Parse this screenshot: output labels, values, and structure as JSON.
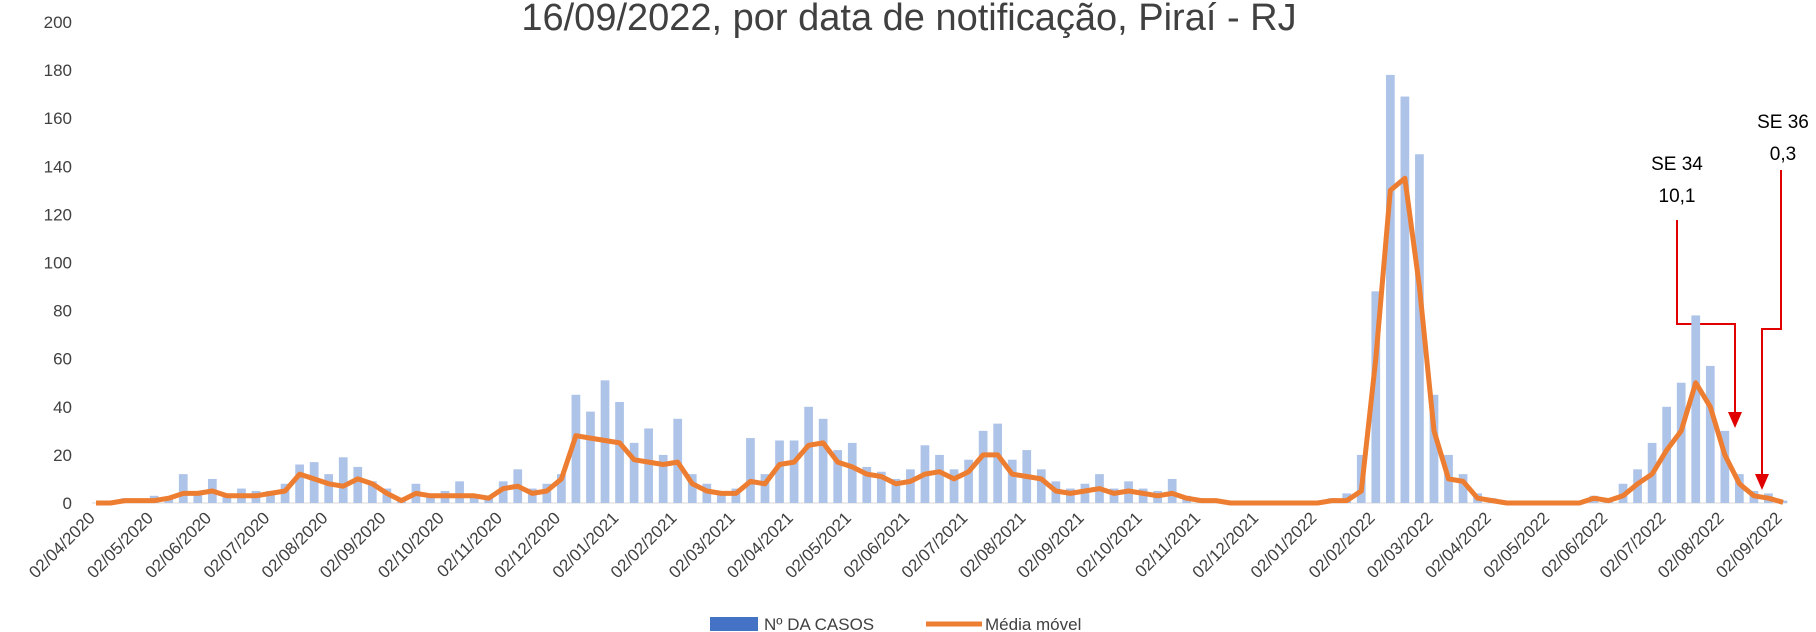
{
  "chart_data": {
    "type": "bar_line",
    "title": "16/09/2022, por data de notificação, Piraí - RJ",
    "categories": [
      "02/04/2020",
      null,
      null,
      null,
      "02/05/2020",
      null,
      null,
      null,
      "02/06/2020",
      null,
      null,
      null,
      "02/07/2020",
      null,
      null,
      null,
      "02/08/2020",
      null,
      null,
      null,
      "02/09/2020",
      null,
      null,
      null,
      "02/10/2020",
      null,
      null,
      null,
      "02/11/2020",
      null,
      null,
      null,
      "02/12/2020",
      null,
      null,
      null,
      "02/01/2021",
      null,
      null,
      null,
      "02/02/2021",
      null,
      null,
      null,
      "02/03/2021",
      null,
      null,
      null,
      "02/04/2021",
      null,
      null,
      null,
      "02/05/2021",
      null,
      null,
      null,
      "02/06/2021",
      null,
      null,
      null,
      "02/07/2021",
      null,
      null,
      null,
      "02/08/2021",
      null,
      null,
      null,
      "02/09/2021",
      null,
      null,
      null,
      "02/10/2021",
      null,
      null,
      null,
      "02/11/2021",
      null,
      null,
      null,
      "02/12/2021",
      null,
      null,
      null,
      "02/01/2022",
      null,
      null,
      null,
      "02/02/2022",
      null,
      null,
      null,
      "02/03/2022",
      null,
      null,
      null,
      "02/04/2022",
      null,
      null,
      null,
      "02/05/2022",
      null,
      null,
      null,
      "02/06/2022",
      null,
      null,
      null,
      "02/07/2022",
      null,
      null,
      null,
      "02/08/2022",
      null,
      null,
      null,
      "02/09/2022"
    ],
    "series": [
      {
        "name": "Nº DA CASOS",
        "color": "#aec3e8",
        "legend_color": "#4472c4",
        "kind": "bar",
        "values": [
          0,
          1,
          2,
          1,
          3,
          2,
          12,
          5,
          10,
          4,
          6,
          5,
          5,
          8,
          16,
          17,
          12,
          19,
          15,
          9,
          6,
          2,
          8,
          4,
          5,
          9,
          3,
          2,
          9,
          14,
          6,
          8,
          12,
          45,
          38,
          51,
          42,
          25,
          31,
          20,
          35,
          12,
          8,
          5,
          6,
          27,
          12,
          26,
          26,
          40,
          35,
          22,
          25,
          15,
          13,
          10,
          14,
          24,
          20,
          14,
          18,
          30,
          33,
          18,
          22,
          14,
          9,
          6,
          8,
          12,
          6,
          9,
          6,
          5,
          10,
          3,
          2,
          1,
          0,
          1,
          0,
          1,
          0,
          1,
          1,
          2,
          4,
          20,
          88,
          178,
          169,
          145,
          45,
          20,
          12,
          4,
          2,
          1,
          0,
          1,
          0,
          1,
          1,
          3,
          2,
          8,
          14,
          25,
          40,
          50,
          78,
          57,
          30,
          12,
          5,
          4,
          1
        ]
      },
      {
        "name": "Média móvel",
        "color": "#ed7d31",
        "kind": "line",
        "values": [
          0,
          0,
          1,
          1,
          1,
          2,
          4,
          4,
          5,
          3,
          3,
          3,
          4,
          5,
          12,
          10,
          8,
          7,
          10,
          8,
          4,
          1,
          4,
          3,
          3,
          3,
          3,
          2,
          6,
          7,
          4,
          5,
          10,
          28,
          27,
          26,
          25,
          18,
          17,
          16,
          17,
          8,
          5,
          4,
          4,
          9,
          8,
          16,
          17,
          24,
          25,
          17,
          15,
          12,
          11,
          8,
          9,
          12,
          13,
          10,
          13,
          20,
          20,
          12,
          11,
          10,
          5,
          4,
          5,
          6,
          4,
          5,
          4,
          3,
          4,
          2,
          1,
          1,
          0,
          0,
          0,
          0,
          0,
          0,
          0,
          1,
          1,
          5,
          60,
          130,
          135,
          90,
          30,
          10,
          9,
          2,
          1,
          0,
          0,
          0,
          0,
          0,
          0,
          2,
          1,
          3,
          8,
          12,
          22,
          30,
          50,
          40,
          20,
          8,
          3,
          2,
          0.3
        ]
      }
    ],
    "ylim": [
      0,
      200
    ],
    "yticks": [
      0,
      20,
      40,
      60,
      80,
      100,
      120,
      140,
      160,
      180,
      200
    ],
    "annotations": [
      {
        "lines": [
          "SE 34",
          "10,1"
        ],
        "color": "#e00000"
      },
      {
        "lines": [
          "SE 36",
          "0,3"
        ],
        "color": "#e00000"
      }
    ]
  }
}
